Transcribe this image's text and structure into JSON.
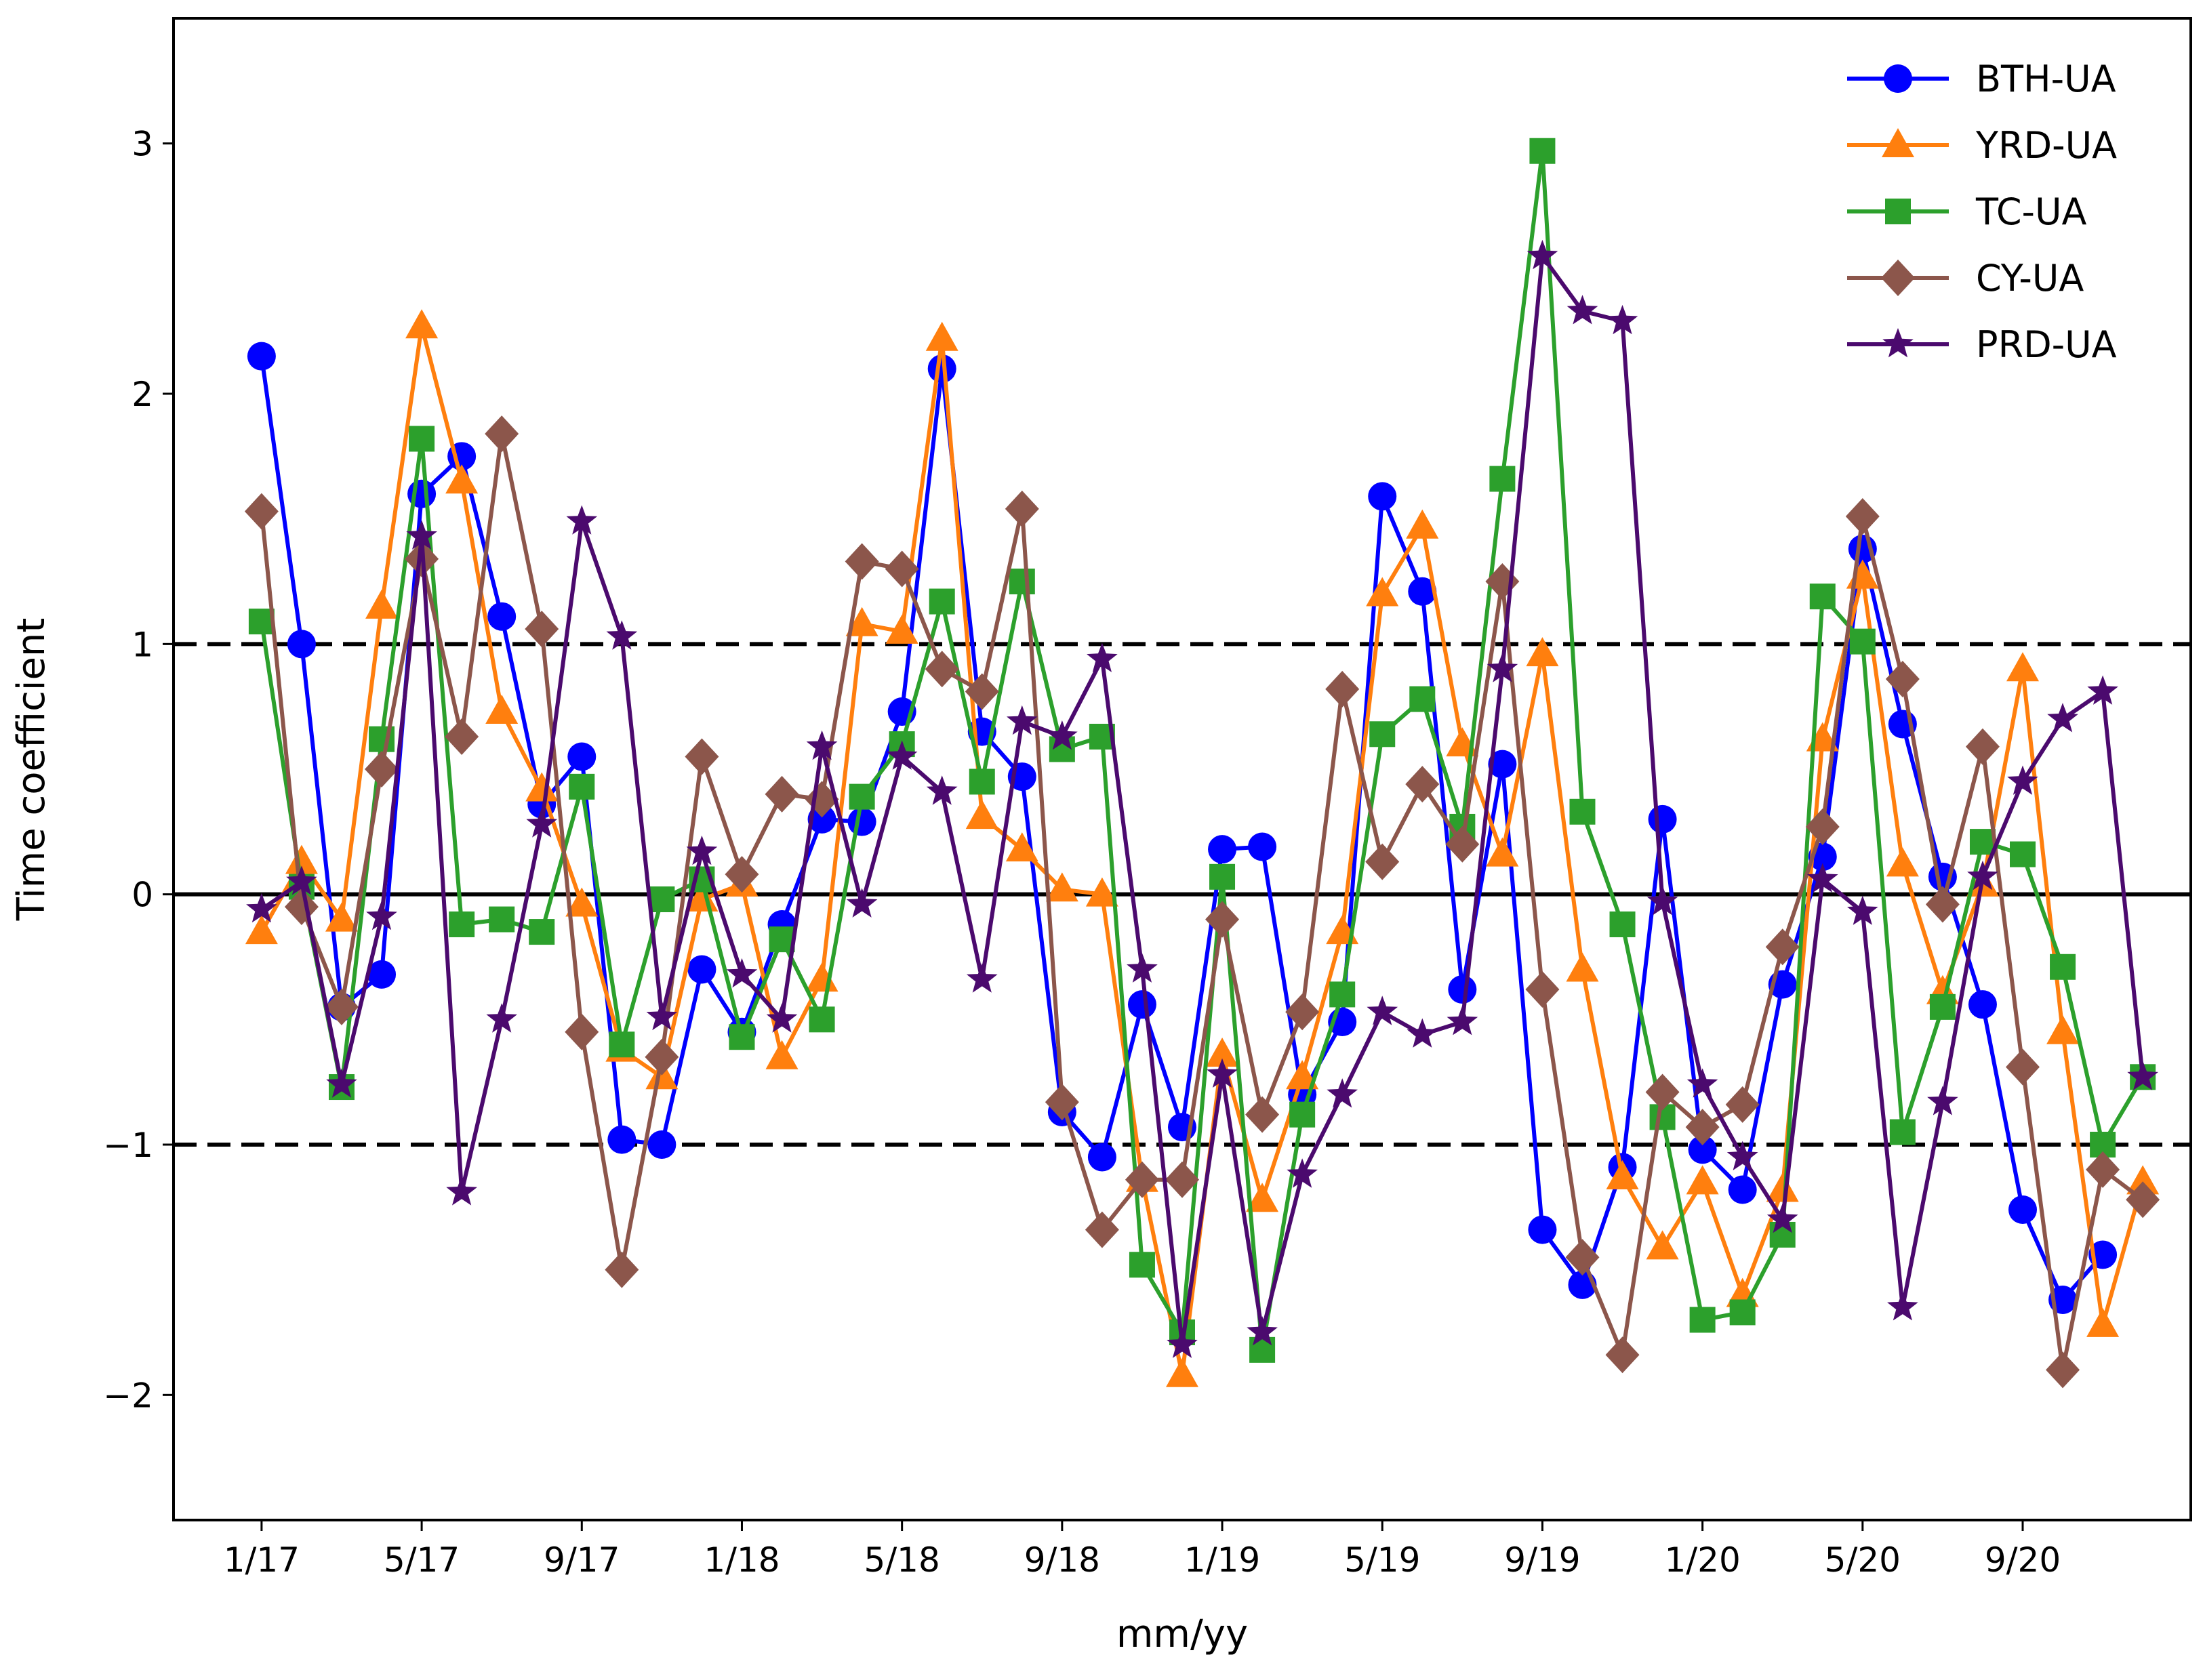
{
  "chart_data": {
    "type": "line",
    "title": "",
    "xlabel": "mm/yy",
    "ylabel": "Time coefficient",
    "ylim": [
      -2.5,
      3.5
    ],
    "xlim": [
      -2.2,
      48.2
    ],
    "x": [
      0,
      1,
      2,
      3,
      4,
      5,
      6,
      7,
      8,
      9,
      10,
      11,
      12,
      13,
      14,
      15,
      16,
      17,
      18,
      19,
      20,
      21,
      22,
      23,
      24,
      25,
      26,
      27,
      28,
      29,
      30,
      31,
      32,
      33,
      34,
      35,
      36,
      37,
      38,
      39,
      40,
      41,
      42,
      43,
      44,
      45,
      46,
      47
    ],
    "xticks": [
      0,
      4,
      8,
      12,
      16,
      20,
      24,
      28,
      32,
      36,
      40,
      44
    ],
    "xtick_labels": [
      "1/17",
      "5/17",
      "9/17",
      "1/18",
      "5/18",
      "9/18",
      "1/19",
      "5/19",
      "9/19",
      "1/20",
      "5/20",
      "9/20"
    ],
    "yticks": [
      -2,
      -1,
      0,
      1,
      2,
      3
    ],
    "ytick_labels": [
      "−2",
      "−1",
      "0",
      "1",
      "2",
      "3"
    ],
    "reference_lines": [
      {
        "y": 1,
        "style": "dashed"
      },
      {
        "y": 0,
        "style": "solid"
      },
      {
        "y": -1,
        "style": "dashed"
      }
    ],
    "legend_position": "top-right",
    "series": [
      {
        "name": "BTH-UA",
        "color": "#0000ff",
        "marker": "circle",
        "values": [
          2.15,
          1.0,
          -0.45,
          -0.32,
          1.6,
          1.75,
          1.11,
          0.36,
          0.55,
          -0.98,
          -1.0,
          -0.3,
          -0.55,
          -0.12,
          0.3,
          0.29,
          0.73,
          2.1,
          0.65,
          0.47,
          -0.87,
          -1.05,
          -0.44,
          -0.93,
          0.18,
          0.19,
          -0.8,
          -0.51,
          1.59,
          1.21,
          -0.38,
          0.52,
          -1.34,
          -1.56,
          -1.09,
          0.3,
          -1.02,
          -1.18,
          -0.36,
          0.15,
          1.38,
          0.68,
          0.07,
          -0.44,
          -1.26,
          -1.62,
          -1.44,
          null
        ]
      },
      {
        "name": "YRD-UA",
        "color": "#ff7f0e",
        "marker": "triangle",
        "values": [
          -0.15,
          0.13,
          -0.1,
          1.15,
          2.27,
          1.65,
          0.73,
          0.42,
          -0.04,
          -0.62,
          -0.73,
          -0.02,
          0.04,
          -0.65,
          -0.34,
          1.08,
          1.05,
          2.22,
          0.31,
          0.18,
          0.02,
          0.0,
          -1.14,
          -1.92,
          -0.64,
          -1.22,
          -0.73,
          -0.15,
          1.2,
          1.47,
          0.6,
          0.16,
          0.96,
          -0.3,
          -1.13,
          -1.41,
          -1.15,
          -1.6,
          -1.18,
          0.62,
          1.27,
          0.12,
          -0.39,
          0.04,
          0.9,
          -0.55,
          -1.72,
          -1.15
        ]
      },
      {
        "name": "TC-UA",
        "color": "#2ca02c",
        "marker": "square",
        "values": [
          1.09,
          0.03,
          -0.77,
          0.62,
          1.82,
          -0.12,
          -0.1,
          -0.15,
          0.43,
          -0.6,
          -0.02,
          0.06,
          -0.57,
          -0.18,
          -0.5,
          0.39,
          0.6,
          1.17,
          0.45,
          1.25,
          0.58,
          0.63,
          -1.48,
          -1.75,
          0.07,
          -1.82,
          -0.88,
          -0.4,
          0.64,
          0.78,
          0.27,
          1.66,
          2.97,
          0.33,
          -0.12,
          -0.89,
          -1.7,
          -1.67,
          -1.36,
          1.19,
          1.01,
          -0.95,
          -0.45,
          0.21,
          0.16,
          -0.29,
          -1.0,
          -0.73
        ]
      },
      {
        "name": "CY-UA",
        "color": "#8c564b",
        "marker": "diamond",
        "values": [
          1.53,
          -0.05,
          -0.45,
          0.5,
          1.34,
          0.63,
          1.84,
          1.06,
          -0.55,
          -1.5,
          -0.65,
          0.55,
          0.08,
          0.4,
          0.38,
          1.33,
          1.3,
          0.9,
          0.81,
          1.54,
          -0.83,
          -1.34,
          -1.14,
          -1.14,
          -0.1,
          -0.88,
          -0.47,
          0.82,
          0.13,
          0.44,
          0.2,
          1.25,
          -0.38,
          -1.45,
          -1.84,
          -0.79,
          -0.93,
          -0.84,
          -0.21,
          0.27,
          1.51,
          0.86,
          -0.04,
          0.59,
          -0.69,
          -1.9,
          -1.1,
          -1.22
        ]
      },
      {
        "name": "PRD-UA",
        "color": "#4b0a6e",
        "marker": "star",
        "values": [
          -0.06,
          0.05,
          -0.76,
          -0.09,
          1.43,
          -1.19,
          -0.5,
          0.28,
          1.49,
          1.03,
          -0.49,
          0.17,
          -0.32,
          -0.5,
          0.59,
          -0.04,
          0.55,
          0.41,
          -0.34,
          0.69,
          0.63,
          0.94,
          -0.3,
          -1.8,
          -0.72,
          -1.75,
          -1.12,
          -0.8,
          -0.47,
          -0.56,
          -0.51,
          0.9,
          2.55,
          2.33,
          2.29,
          -0.03,
          -0.76,
          -1.05,
          -1.3,
          0.06,
          -0.07,
          -1.65,
          -0.83,
          0.07,
          0.45,
          0.7,
          0.81,
          -0.73
        ]
      }
    ]
  }
}
